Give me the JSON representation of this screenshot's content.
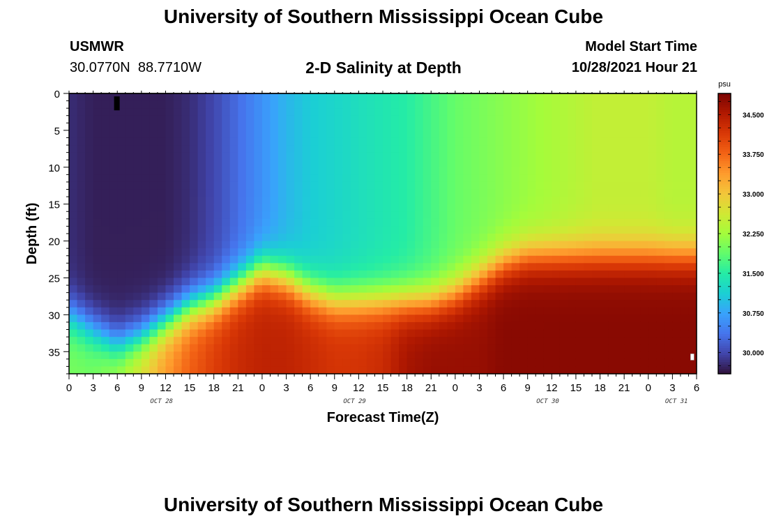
{
  "page": {
    "title": "University of Southern Mississippi Ocean Cube",
    "station_id": "USMWR",
    "coords": "30.0770N  88.7710W",
    "plot_title": "2-D Salinity at Depth",
    "model_start_label": "Model Start Time",
    "model_start_value": "10/28/2021 Hour 21",
    "bottom_title": "University of Southern Mississippi Ocean Cube"
  },
  "chart_data": {
    "type": "heatmap",
    "title": "2-D Salinity at Depth",
    "xlabel": "Forecast Time(Z)",
    "ylabel": "Depth (ft)",
    "x_range_hours": [
      0,
      78
    ],
    "y_range_ft": [
      0,
      38
    ],
    "x_tick_labels": [
      "0",
      "3",
      "6",
      "9",
      "12",
      "15",
      "18",
      "21",
      "0",
      "3",
      "6",
      "9",
      "12",
      "15",
      "18",
      "21",
      "0",
      "3",
      "6",
      "9",
      "12",
      "15",
      "18",
      "21",
      "0",
      "3",
      "6"
    ],
    "y_tick_labels": [
      "0",
      "5",
      "10",
      "15",
      "20",
      "25",
      "30",
      "35"
    ],
    "y_tick_values": [
      0,
      5,
      10,
      15,
      20,
      25,
      30,
      35
    ],
    "date_labels": [
      {
        "label": "OCT 28",
        "hour": 11.5
      },
      {
        "label": "OCT 29",
        "hour": 35.5
      },
      {
        "label": "OCT 30",
        "hour": 59.5
      },
      {
        "label": "OCT 31",
        "hour": 75.5
      }
    ],
    "colorbar": {
      "unit": "psu",
      "min": 29.6,
      "max": 34.9,
      "labels": [
        "30.000",
        "30.750",
        "31.500",
        "32.250",
        "33.000",
        "33.750",
        "34.500"
      ],
      "label_values": [
        30.0,
        30.75,
        31.5,
        32.25,
        33.0,
        33.75,
        34.5
      ]
    },
    "surface_salinity": {
      "hours": [
        0,
        3,
        6,
        9,
        12,
        15,
        18,
        21,
        24,
        27,
        30,
        33,
        36,
        39,
        42,
        45,
        48,
        51,
        54,
        57,
        60,
        63,
        66,
        69,
        72,
        75,
        78
      ],
      "values": [
        29.8,
        29.7,
        29.7,
        29.7,
        29.7,
        29.8,
        30.0,
        30.3,
        30.6,
        30.9,
        31.1,
        31.2,
        31.3,
        31.4,
        31.5,
        31.7,
        31.9,
        32.0,
        32.1,
        32.2,
        32.3,
        32.4,
        32.5,
        32.5,
        32.5,
        32.4,
        32.4
      ]
    },
    "bottom_salinity": {
      "hours": [
        0,
        3,
        6,
        9,
        12,
        15,
        18,
        21,
        24,
        27,
        30,
        33,
        36,
        39,
        42,
        45,
        48,
        51,
        54,
        57,
        60,
        63,
        66,
        69,
        72,
        75,
        78
      ],
      "values": [
        32.0,
        32.0,
        32.3,
        32.8,
        33.4,
        33.8,
        34.1,
        34.3,
        34.4,
        34.4,
        34.3,
        34.2,
        34.2,
        34.3,
        34.6,
        34.7,
        34.7,
        34.7,
        34.8,
        34.8,
        34.8,
        34.8,
        34.8,
        34.8,
        34.8,
        34.8,
        34.8
      ]
    },
    "halocline_depth_ft": {
      "hours": [
        0,
        3,
        6,
        9,
        12,
        15,
        18,
        21,
        24,
        27,
        30,
        33,
        36,
        39,
        42,
        45,
        48,
        51,
        54,
        57,
        60,
        63,
        66,
        69,
        72,
        75,
        78
      ],
      "values": [
        30,
        32,
        34,
        33,
        31,
        29,
        28,
        26,
        24,
        25,
        27,
        28,
        28,
        28,
        28,
        28,
        27,
        25,
        23,
        22,
        22,
        22,
        22,
        22,
        22,
        22,
        22
      ]
    }
  },
  "colors": {
    "colormap": [
      "#30123b",
      "#4145ab",
      "#4675ed",
      "#39a2fc",
      "#1bcfd4",
      "#24eca6",
      "#61fc6c",
      "#a4fc3b",
      "#d1e834",
      "#f3c63a",
      "#fe9b2d",
      "#f36315",
      "#d93806",
      "#b11901",
      "#7a0403"
    ]
  }
}
